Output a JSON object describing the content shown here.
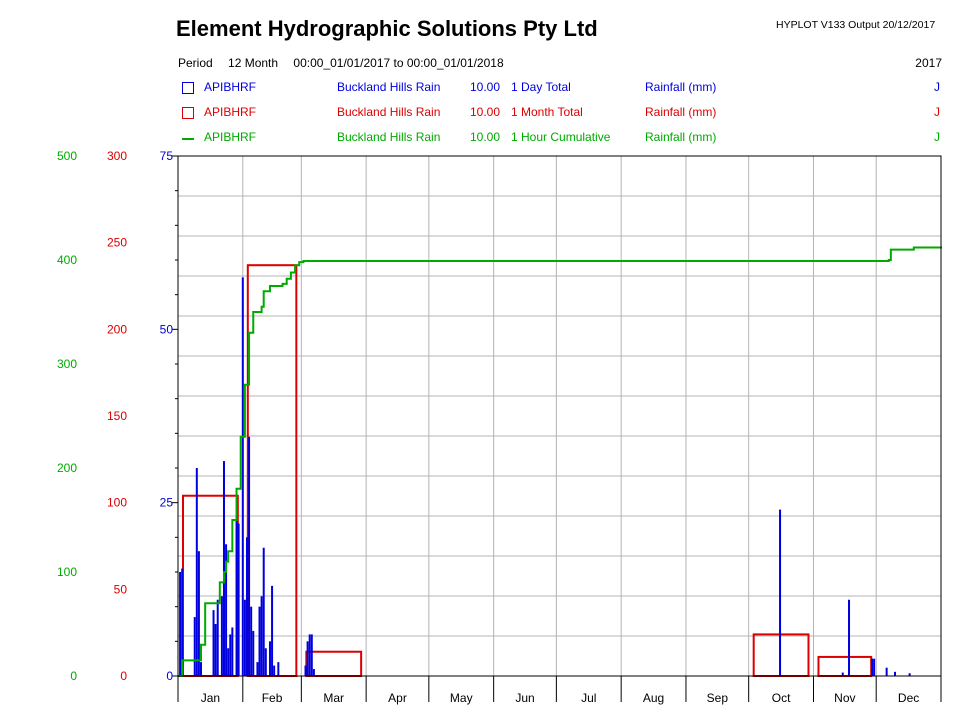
{
  "header": {
    "title": "Element Hydrographic Solutions Pty Ltd",
    "version": "HYPLOT V133  Output 20/12/2017",
    "period_label": "Period",
    "period_length": "12 Month",
    "period_range": "00:00_01/01/2017 to 00:00_01/01/2018",
    "year": "2017"
  },
  "legend": [
    {
      "site": "APIBHRF",
      "name": "Buckland Hills Rain",
      "num": "10.00",
      "stat": "1 Day Total",
      "units": "Rainfall (mm)",
      "tag": "J",
      "color": "#0000dd",
      "symbol": "box"
    },
    {
      "site": "APIBHRF",
      "name": "Buckland Hills Rain",
      "num": "10.00",
      "stat": "1 Month Total",
      "units": "Rainfall (mm)",
      "tag": "J",
      "color": "#dd0000",
      "symbol": "box"
    },
    {
      "site": "APIBHRF",
      "name": "Buckland Hills Rain",
      "num": "10.00",
      "stat": "1 Hour Cumulative",
      "units": "Rainfall (mm)",
      "tag": "J",
      "color": "#00aa00",
      "symbol": "line"
    }
  ],
  "chart_data": {
    "type": "bar",
    "months": [
      "Jan",
      "Feb",
      "Mar",
      "Apr",
      "May",
      "Jun",
      "Jul",
      "Aug",
      "Sep",
      "Oct",
      "Nov",
      "Dec"
    ],
    "axes": {
      "blue": {
        "ticks": [
          "0",
          "25",
          "50",
          "75"
        ],
        "max": 75,
        "color": "#0000dd"
      },
      "red": {
        "ticks": [
          "0",
          "50",
          "100",
          "150",
          "200",
          "250",
          "300"
        ],
        "max": 300,
        "color": "#dd0000"
      },
      "green": {
        "ticks": [
          "0",
          "100",
          "200",
          "300",
          "400",
          "500"
        ],
        "max": 500,
        "color": "#00aa00"
      }
    },
    "grid": true,
    "series_daily": {
      "name": "1 Day Total",
      "color": "#0000dd",
      "points": [
        [
          1,
          15
        ],
        [
          2,
          15.5
        ],
        [
          8,
          8.5
        ],
        [
          9,
          30
        ],
        [
          10,
          18
        ],
        [
          11,
          2
        ],
        [
          17,
          9.5
        ],
        [
          18,
          7.5
        ],
        [
          19,
          11
        ],
        [
          21,
          11.5
        ],
        [
          22,
          31
        ],
        [
          23,
          19
        ],
        [
          24,
          4
        ],
        [
          25,
          6
        ],
        [
          26,
          7
        ],
        [
          28,
          23
        ],
        [
          29,
          22
        ],
        [
          31,
          57.5
        ],
        [
          32,
          11
        ],
        [
          33,
          20
        ],
        [
          34,
          34.5
        ],
        [
          35,
          10
        ],
        [
          36,
          6.5
        ],
        [
          38,
          2
        ],
        [
          39,
          10
        ],
        [
          40,
          11.5
        ],
        [
          41,
          18.5
        ],
        [
          42,
          4
        ],
        [
          44,
          5
        ],
        [
          45,
          13
        ],
        [
          46,
          1.5
        ],
        [
          48,
          2
        ],
        [
          61,
          1.5
        ],
        [
          62,
          5
        ],
        [
          63,
          6
        ],
        [
          64,
          6
        ],
        [
          65,
          1
        ],
        [
          288,
          24
        ],
        [
          318,
          0.5
        ],
        [
          321,
          11
        ],
        [
          332,
          2.5
        ],
        [
          333,
          2.5
        ],
        [
          339,
          1.2
        ],
        [
          343,
          0.6
        ],
        [
          350,
          0.4
        ]
      ]
    },
    "series_monthly": {
      "name": "1 Month Total",
      "color": "#dd0000",
      "values": [
        104,
        237,
        14,
        0,
        0,
        0,
        0,
        0,
        0,
        24,
        11,
        0
      ]
    },
    "series_cumulative": {
      "name": "1 Hour Cumulative",
      "color": "#00aa00",
      "points": [
        [
          0,
          0
        ],
        [
          1,
          0
        ],
        [
          2,
          15
        ],
        [
          9,
          15
        ],
        [
          11,
          30
        ],
        [
          13,
          70
        ],
        [
          18,
          70
        ],
        [
          20,
          90
        ],
        [
          22,
          100
        ],
        [
          23,
          110
        ],
        [
          24,
          120
        ],
        [
          26,
          150
        ],
        [
          28,
          180
        ],
        [
          30,
          230
        ],
        [
          32,
          280
        ],
        [
          34,
          330
        ],
        [
          36,
          350
        ],
        [
          40,
          355
        ],
        [
          41,
          370
        ],
        [
          44,
          375
        ],
        [
          48,
          375
        ],
        [
          50,
          377
        ],
        [
          52,
          382
        ],
        [
          54,
          388
        ],
        [
          56,
          395
        ],
        [
          58,
          398
        ],
        [
          60,
          399
        ],
        [
          340,
          400
        ],
        [
          341,
          410
        ],
        [
          352,
          412
        ],
        [
          365,
          413
        ]
      ]
    }
  }
}
